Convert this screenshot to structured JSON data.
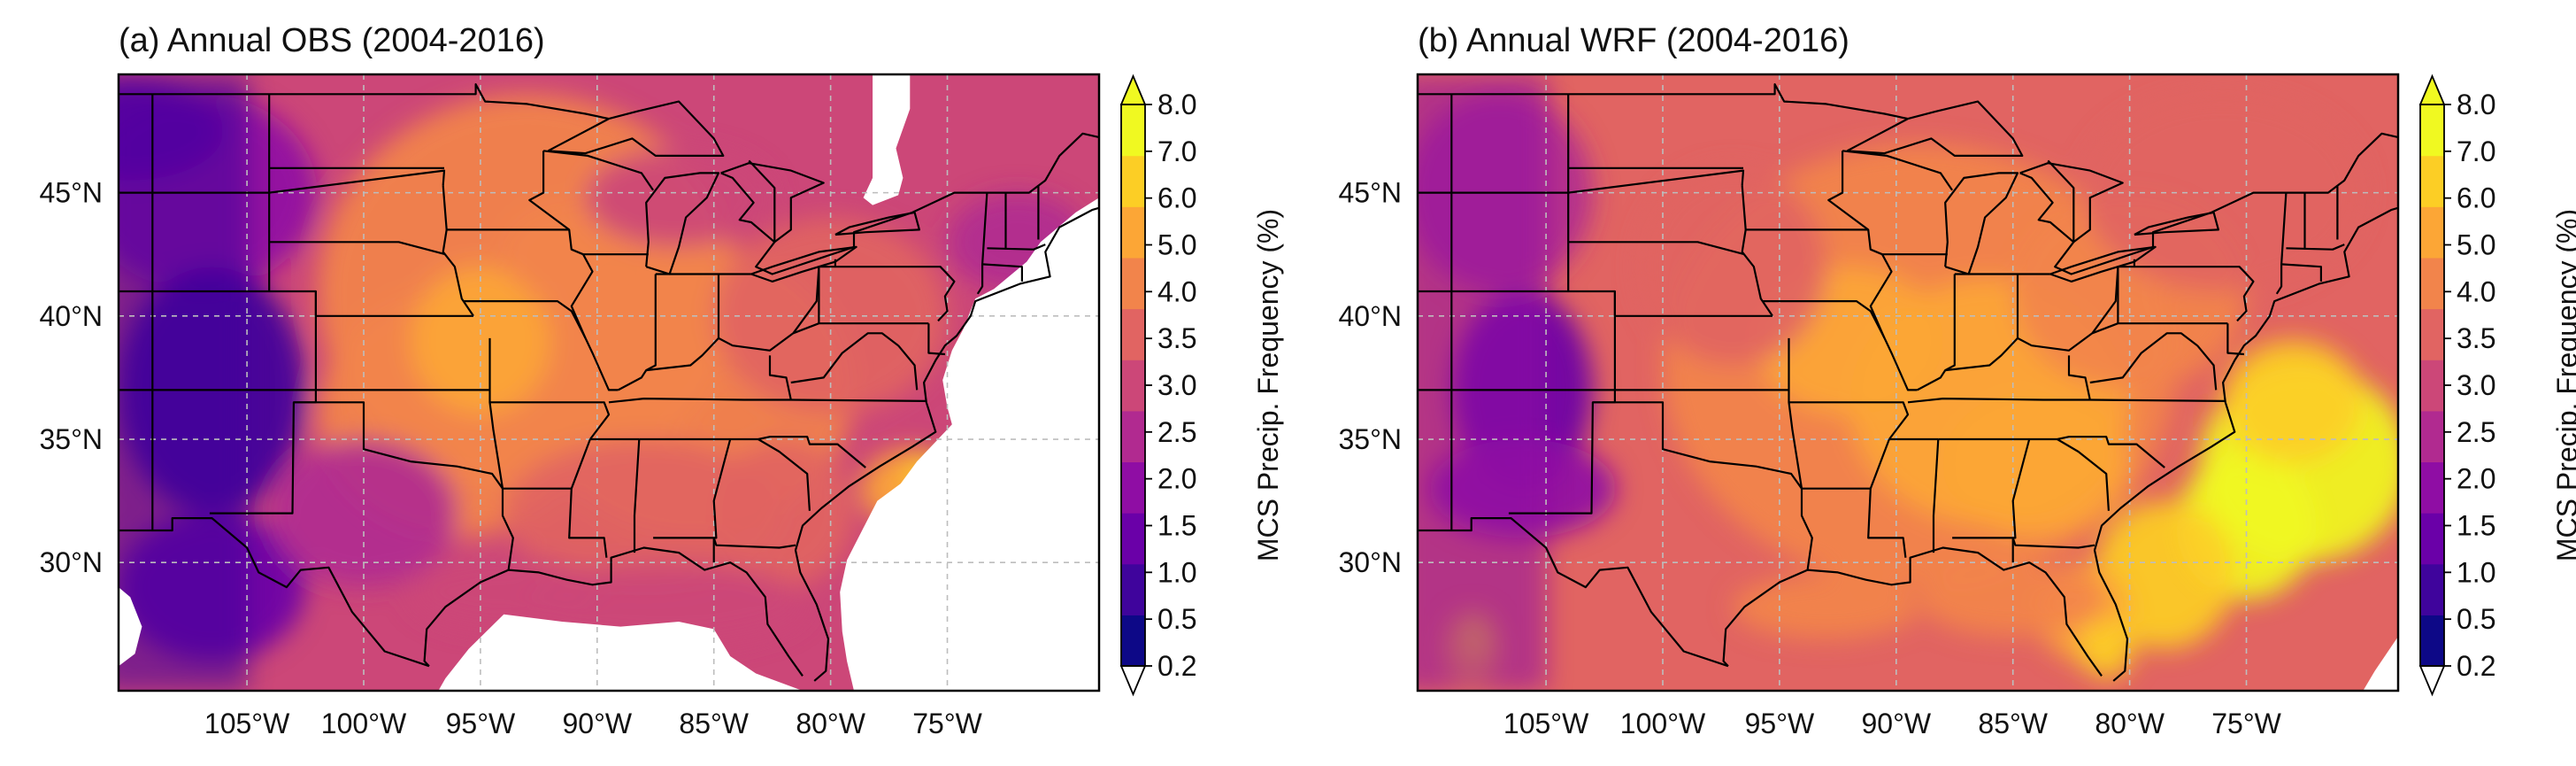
{
  "figure": {
    "panels": [
      {
        "id": "a",
        "title": "(a) Annual OBS (2004-2016)",
        "lon_ticks": [
          "105°W",
          "100°W",
          "95°W",
          "90°W",
          "85°W",
          "80°W",
          "75°W"
        ],
        "lon_values": [
          -105,
          -100,
          -95,
          -90,
          -85,
          -80,
          -75
        ],
        "lat_ticks": [
          "45°N",
          "40°N",
          "35°N",
          "30°N"
        ],
        "lat_values": [
          45,
          40,
          35,
          30
        ],
        "lon_range": [
          -110.5,
          -68.5
        ],
        "lat_range": [
          24.8,
          49.8
        ],
        "colorbar": {
          "label": "MCS Precip. Frequency (%)",
          "ticks": [
            "0.2",
            "0.5",
            "1.0",
            "1.5",
            "2.0",
            "2.5",
            "3.0",
            "3.5",
            "4.0",
            "5.0",
            "6.0",
            "7.0",
            "8.0"
          ]
        }
      },
      {
        "id": "b",
        "title": "(b) Annual WRF (2004-2016)",
        "lon_ticks": [
          "105°W",
          "100°W",
          "95°W",
          "90°W",
          "85°W",
          "80°W",
          "75°W"
        ],
        "lon_values": [
          -105,
          -100,
          -95,
          -90,
          -85,
          -80,
          -75
        ],
        "lat_ticks": [
          "45°N",
          "40°N",
          "35°N",
          "30°N"
        ],
        "lat_values": [
          45,
          40,
          35,
          30
        ],
        "lon_range": [
          -110.5,
          -68.5
        ],
        "lat_range": [
          24.8,
          49.8
        ],
        "colorbar": {
          "label": "MCS Precip. Frequency (%)",
          "ticks": [
            "0.2",
            "0.5",
            "1.0",
            "1.5",
            "2.0",
            "2.5",
            "3.0",
            "3.5",
            "4.0",
            "5.0",
            "6.0",
            "7.0",
            "8.0"
          ]
        }
      }
    ],
    "colors": [
      "#0d0887",
      "#3f049c",
      "#6a00a8",
      "#8f0da4",
      "#b12a90",
      "#cc4778",
      "#e16462",
      "#f2844b",
      "#fca636",
      "#fcce25",
      "#f0f921"
    ],
    "background": "#7b1a9c",
    "missing": "#ffffff"
  }
}
